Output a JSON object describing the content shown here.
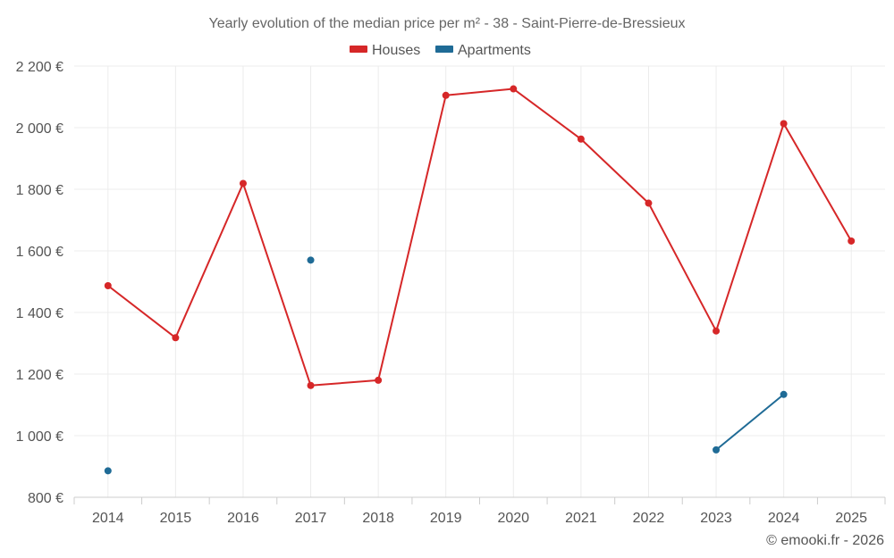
{
  "chart_data": {
    "type": "line",
    "title": "Yearly evolution of the median price per m² - 38 - Saint-Pierre-de-Bressieux",
    "categories": [
      "2014",
      "2015",
      "2016",
      "2017",
      "2018",
      "2019",
      "2020",
      "2021",
      "2022",
      "2023",
      "2024",
      "2025"
    ],
    "series": [
      {
        "name": "Houses",
        "color": "#d62728",
        "values": [
          1487,
          1318,
          1819,
          1163,
          1180,
          2105,
          2126,
          1963,
          1755,
          1340,
          2013,
          1632
        ]
      },
      {
        "name": "Apartments",
        "color": "#1f6b96",
        "values": [
          886,
          null,
          null,
          1570,
          null,
          null,
          null,
          null,
          null,
          954,
          1134,
          null
        ]
      }
    ],
    "ylim": [
      800,
      2200
    ],
    "yticks": [
      800,
      1000,
      1200,
      1400,
      1600,
      1800,
      2000,
      2200
    ],
    "ytick_labels": [
      "800 €",
      "1 000 €",
      "1 200 €",
      "1 400 €",
      "1 600 €",
      "1 800 €",
      "2 000 €",
      "2 200 €"
    ],
    "xlabel": "",
    "ylabel": "",
    "grid": true,
    "legend_position": "top-center",
    "credit": "© emooki.fr - 2026"
  }
}
